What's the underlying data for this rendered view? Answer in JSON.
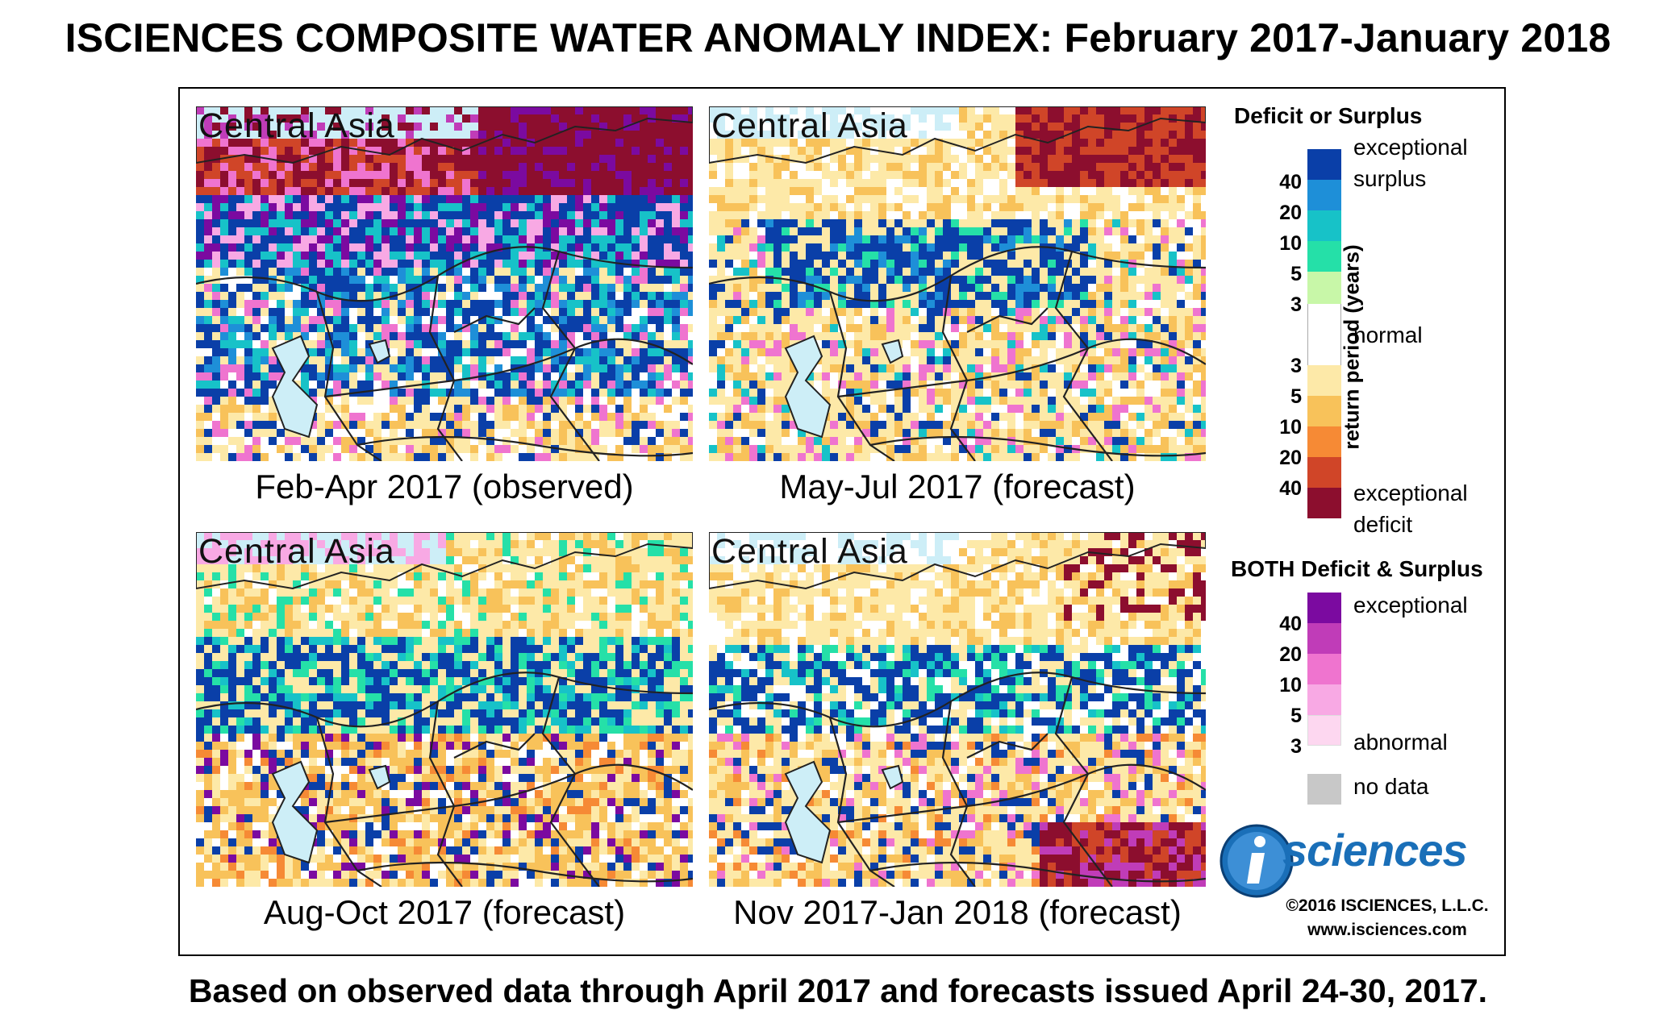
{
  "title": "ISCIENCES COMPOSITE WATER ANOMALY INDEX: February 2017-January 2018",
  "footer": "Based on observed data through April 2017 and forecasts issued April 24-30, 2017.",
  "panels": [
    {
      "region": "Central Asia",
      "caption": "Feb-Apr 2017 (observed)"
    },
    {
      "region": "Central Asia",
      "caption": "May-Jul 2017 (forecast)"
    },
    {
      "region": "Central Asia",
      "caption": "Aug-Oct 2017 (forecast)"
    },
    {
      "region": "Central Asia",
      "caption": "Nov 2017-Jan 2018 (forecast)"
    }
  ],
  "legend": {
    "title1": "Deficit or Surplus",
    "axis_label": "return period (years)",
    "surplus_ticks": [
      "40",
      "20",
      "10",
      "5",
      "3"
    ],
    "deficit_ticks": [
      "3",
      "5",
      "10",
      "20",
      "40"
    ],
    "label_exceptional": "exceptional",
    "label_surplus": "surplus",
    "label_normal": "normal",
    "label_deficit": "deficit",
    "title2": "BOTH Deficit & Surplus",
    "both_ticks": [
      "40",
      "20",
      "10",
      "5",
      "3"
    ],
    "label_both_exceptional": "exceptional",
    "label_abnormal": "abnormal",
    "label_nodata": "no data",
    "colors": {
      "surplus": [
        "#0a3fa8",
        "#1e8fd8",
        "#17c2c8",
        "#25e0a8",
        "#c8f7a8"
      ],
      "normal": "#ffffff",
      "deficit": [
        "#fde9a8",
        "#f8c25a",
        "#f68a35",
        "#d04528",
        "#8c0e2e"
      ],
      "both": [
        "#7b0aa0",
        "#c03cb8",
        "#ef74cf",
        "#f8a9e4",
        "#fdd7f0"
      ],
      "nodata": "#c8c8c8"
    }
  },
  "logo": {
    "text": "sciences",
    "copyright": "©2016 ISCIENCES, L.L.C.",
    "url": "www.isciences.com"
  }
}
